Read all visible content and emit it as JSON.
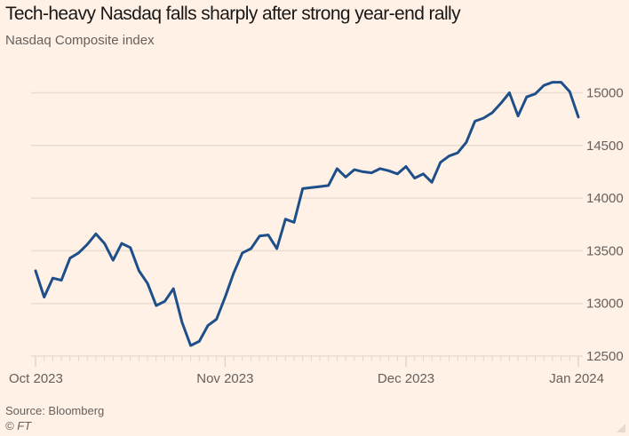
{
  "header": {
    "title": "Tech-heavy Nasdaq falls sharply after strong year-end rally",
    "subtitle": "Nasdaq Composite index"
  },
  "footer": {
    "source": "Source: Bloomberg",
    "copyright": "© FT"
  },
  "colors": {
    "background": "#FFF1E5",
    "line": "#1F4F8A",
    "grid": "#E9DDD3",
    "text": "#66605C"
  },
  "chart_data": {
    "type": "line",
    "title": "Tech-heavy Nasdaq falls sharply after strong year-end rally",
    "subtitle": "Nasdaq Composite index",
    "xlabel": "",
    "ylabel": "",
    "ylim": [
      12500,
      15200
    ],
    "yticks": [
      12500,
      13000,
      13500,
      14000,
      14500,
      15000
    ],
    "ytick_labels": [
      "12500",
      "13000",
      "13500",
      "14000",
      "14500",
      "15000"
    ],
    "y_axis_side": "right",
    "xticks": [
      {
        "index": 0,
        "label": "Oct 2023"
      },
      {
        "index": 22,
        "label": "Nov 2023"
      },
      {
        "index": 43,
        "label": "Dec 2023"
      },
      {
        "index": 63,
        "label": "Jan 2024"
      }
    ],
    "grid": true,
    "series": [
      {
        "name": "Nasdaq Composite",
        "x": [
          "2023-10-02",
          "2023-10-03",
          "2023-10-04",
          "2023-10-05",
          "2023-10-06",
          "2023-10-09",
          "2023-10-10",
          "2023-10-11",
          "2023-10-12",
          "2023-10-13",
          "2023-10-16",
          "2023-10-17",
          "2023-10-18",
          "2023-10-19",
          "2023-10-20",
          "2023-10-23",
          "2023-10-24",
          "2023-10-25",
          "2023-10-26",
          "2023-10-27",
          "2023-10-30",
          "2023-10-31",
          "2023-11-01",
          "2023-11-02",
          "2023-11-03",
          "2023-11-06",
          "2023-11-07",
          "2023-11-08",
          "2023-11-09",
          "2023-11-10",
          "2023-11-13",
          "2023-11-14",
          "2023-11-15",
          "2023-11-16",
          "2023-11-17",
          "2023-11-20",
          "2023-11-21",
          "2023-11-22",
          "2023-11-24",
          "2023-11-27",
          "2023-11-28",
          "2023-11-29",
          "2023-11-30",
          "2023-12-01",
          "2023-12-04",
          "2023-12-05",
          "2023-12-06",
          "2023-12-07",
          "2023-12-08",
          "2023-12-11",
          "2023-12-12",
          "2023-12-13",
          "2023-12-14",
          "2023-12-15",
          "2023-12-18",
          "2023-12-19",
          "2023-12-20",
          "2023-12-21",
          "2023-12-22",
          "2023-12-26",
          "2023-12-27",
          "2023-12-28",
          "2023-12-29",
          "2024-01-02"
        ],
        "values": [
          13310,
          13060,
          13240,
          13220,
          13430,
          13480,
          13560,
          13660,
          13570,
          13410,
          13570,
          13530,
          13310,
          13190,
          12980,
          13020,
          13140,
          12820,
          12600,
          12640,
          12790,
          12850,
          13060,
          13290,
          13480,
          13520,
          13640,
          13650,
          13520,
          13800,
          13770,
          14090,
          14100,
          14110,
          14120,
          14280,
          14200,
          14270,
          14250,
          14240,
          14280,
          14260,
          14230,
          14300,
          14190,
          14230,
          14150,
          14340,
          14400,
          14430,
          14530,
          14730,
          14760,
          14810,
          14900,
          15000,
          14780,
          14960,
          14990,
          15070,
          15100,
          15100,
          15010,
          14770
        ]
      }
    ]
  }
}
